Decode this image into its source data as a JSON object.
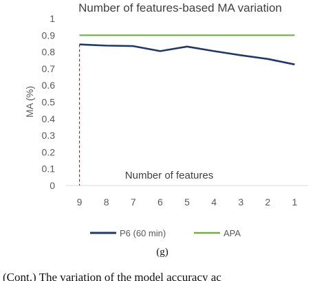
{
  "chart_data": {
    "type": "line",
    "title": "Number of features-based MA variation",
    "xlabel": "Number of features",
    "ylabel": "MA (%)",
    "categories": [
      "9",
      "8",
      "7",
      "6",
      "5",
      "4",
      "3",
      "2",
      "1"
    ],
    "ylim": [
      0,
      1
    ],
    "yticks": [
      "0",
      "0.1",
      "0.2",
      "0.3",
      "0.4",
      "0.5",
      "0.6",
      "0.7",
      "0.8",
      "0.9",
      "1"
    ],
    "grid": false,
    "legend_position": "bottom",
    "series": [
      {
        "name": "P6 (60 min)",
        "color": "#203864",
        "values": [
          0.845,
          0.838,
          0.835,
          0.805,
          0.832,
          0.805,
          0.78,
          0.758,
          0.725
        ]
      },
      {
        "name": "APA",
        "color": "#70ad47",
        "values": [
          0.9,
          0.9,
          0.9,
          0.9,
          0.9,
          0.9,
          0.9,
          0.9,
          0.9
        ]
      }
    ],
    "marker_line": {
      "category": "9",
      "color": "#ff0000",
      "style": "dashed"
    }
  },
  "panel_label": "(g)",
  "caption": "(Cont.) The variation of the model accuracy ac"
}
